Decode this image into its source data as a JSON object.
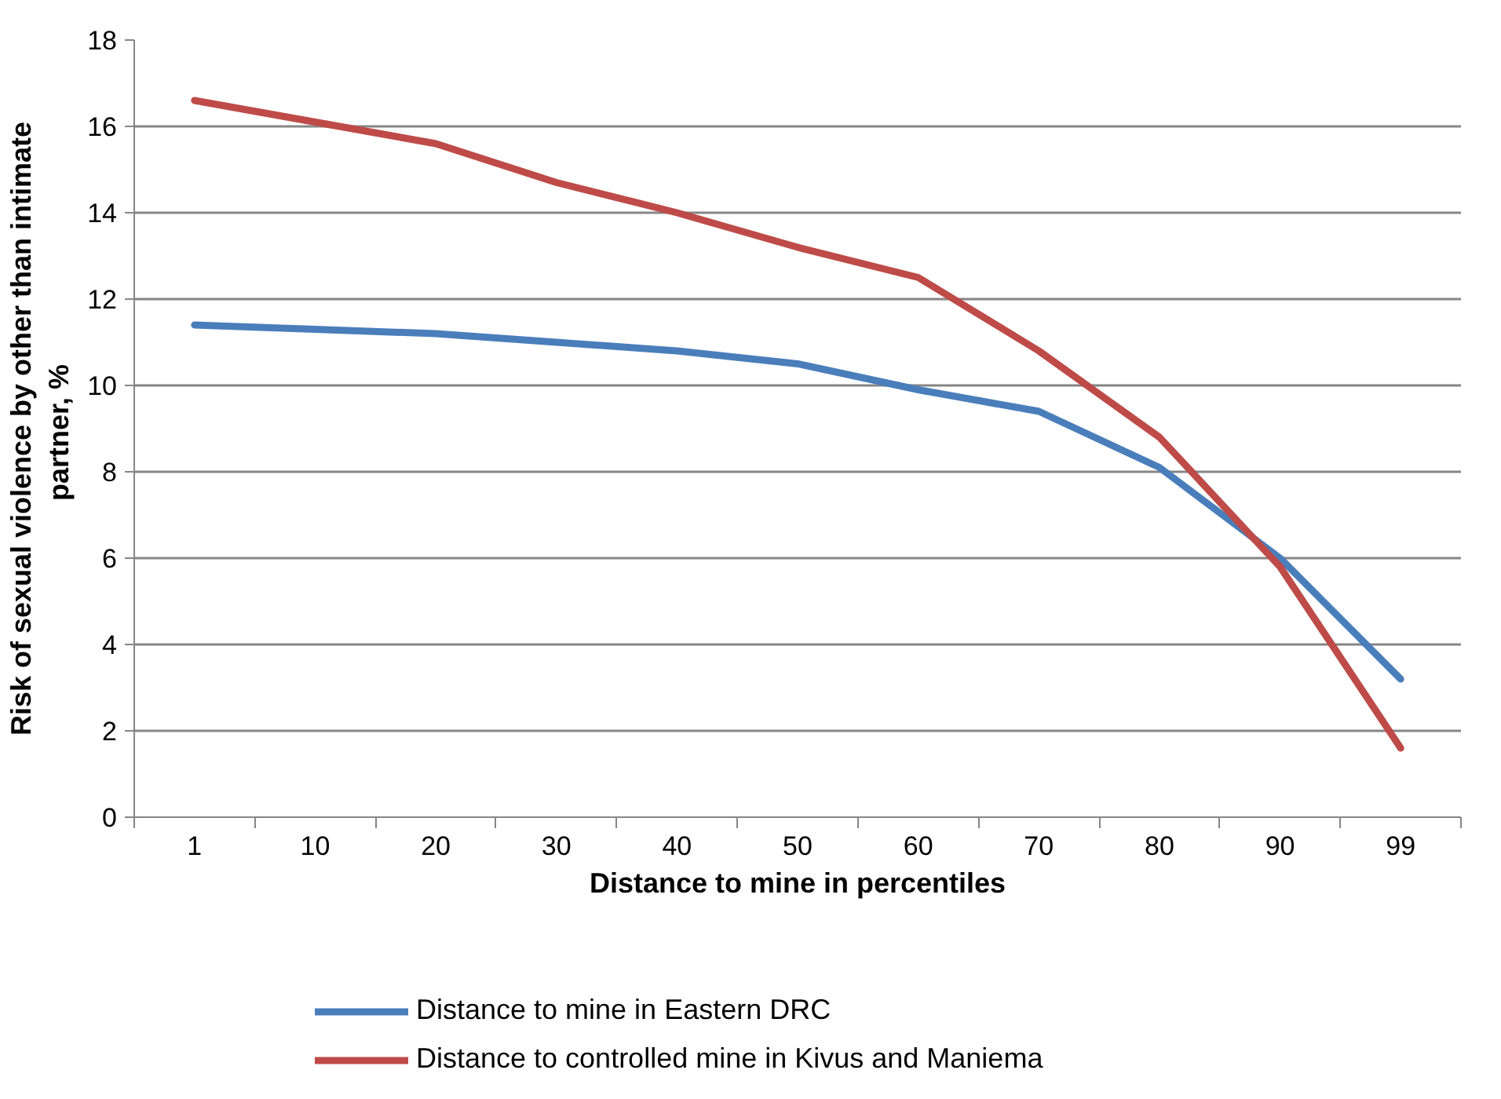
{
  "chart_data": {
    "type": "line",
    "xlabel": "Distance to mine in percentiles",
    "ylabel": "Risk of sexual violence by other than intimate partner,  %",
    "categories": [
      "1",
      "10",
      "20",
      "30",
      "40",
      "50",
      "60",
      "70",
      "80",
      "90",
      "99"
    ],
    "series": [
      {
        "name": "Distance to mine in Eastern DRC",
        "color": "#4a7ebb",
        "values": [
          11.4,
          11.3,
          11.2,
          11.0,
          10.8,
          10.5,
          9.9,
          9.4,
          8.1,
          6.0,
          3.2
        ]
      },
      {
        "name": "Distance to controlled mine in Kivus and Maniema",
        "color": "#be4b48",
        "values": [
          16.6,
          16.1,
          15.6,
          14.7,
          14.0,
          13.2,
          12.5,
          10.8,
          8.8,
          5.8,
          1.6
        ]
      }
    ],
    "ylim": [
      0,
      18
    ],
    "yticks": [
      0,
      2,
      4,
      6,
      8,
      10,
      12,
      14,
      16,
      18
    ],
    "grid": "y",
    "legend": "bottom",
    "marker": "none",
    "line_style": "solid"
  }
}
